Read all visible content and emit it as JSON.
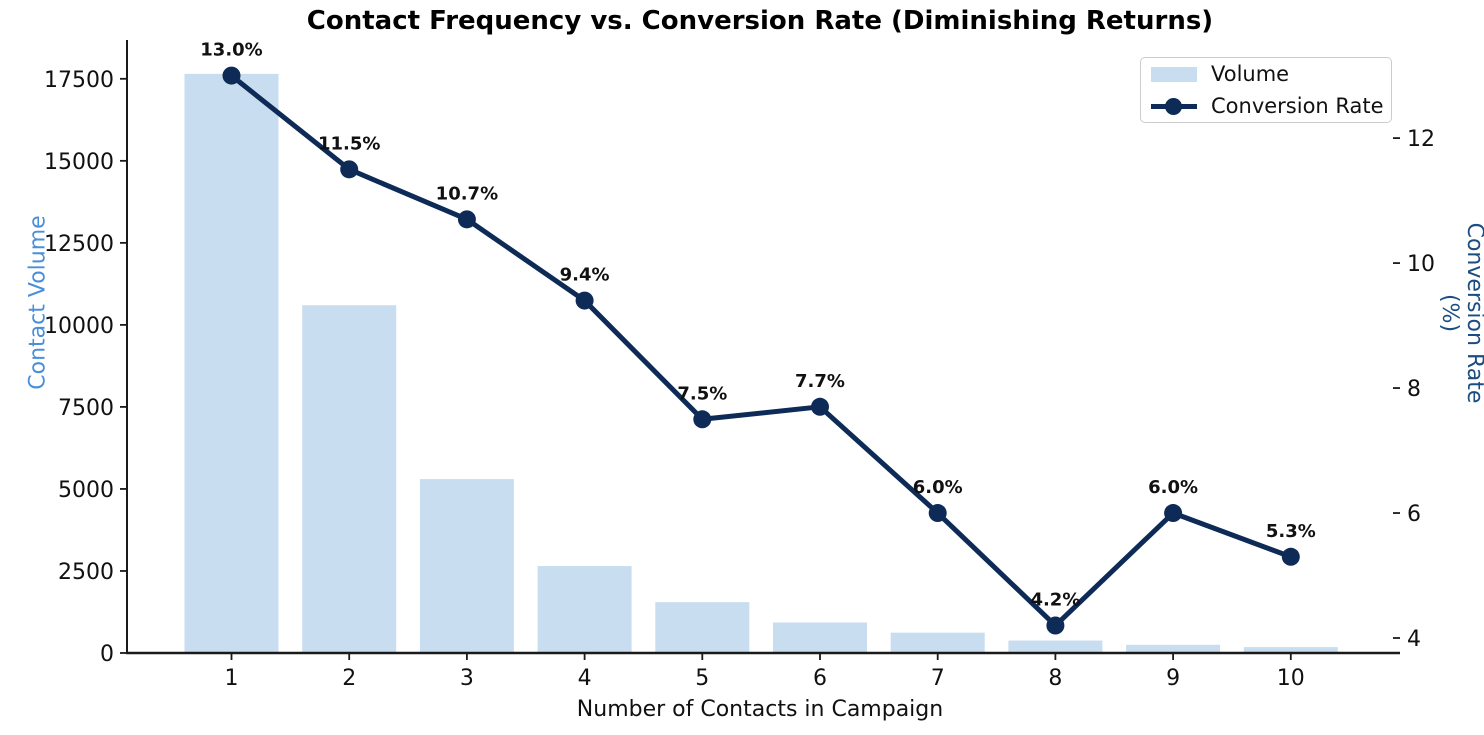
{
  "title": "Contact Frequency vs. Conversion Rate (Diminishing Returns)",
  "legend": {
    "volume_label": "Volume",
    "conversion_label": "Conversion Rate",
    "position": "upper right"
  },
  "colors": {
    "bar_fill": "#c9ddf0",
    "line": "#0d2b56",
    "left_axis_label": "#4a90d9",
    "right_axis_label": "#1b4d82",
    "tick_text": "#111111",
    "spine": "#1a1a1a",
    "point_label_text": "#111111"
  },
  "chart_data": {
    "type": "combo",
    "title": "Contact Frequency vs. Conversion Rate (Diminishing Returns)",
    "xlabel": "Number of Contacts in Campaign",
    "ylabel_left": "Contact Volume",
    "ylabel_right": "Conversion Rate (%)",
    "categories": [
      1,
      2,
      3,
      4,
      5,
      6,
      7,
      8,
      9,
      10
    ],
    "series": [
      {
        "name": "Volume",
        "type": "bar",
        "axis": "left",
        "values": [
          17650,
          10600,
          5300,
          2650,
          1550,
          930,
          620,
          380,
          250,
          180
        ]
      },
      {
        "name": "Conversion Rate",
        "type": "line",
        "axis": "right",
        "values": [
          13.0,
          11.5,
          10.7,
          9.4,
          7.5,
          7.7,
          6.0,
          4.2,
          6.0,
          5.3
        ],
        "point_labels": [
          "13.0%",
          "11.5%",
          "10.7%",
          "9.4%",
          "7.5%",
          "7.7%",
          "6.0%",
          "4.2%",
          "6.0%",
          "5.3%"
        ]
      }
    ],
    "yticks_left": [
      0,
      2500,
      5000,
      7500,
      10000,
      12500,
      15000,
      17500
    ],
    "yticks_right": [
      4,
      6,
      8,
      10,
      12
    ],
    "ylim_left": [
      0,
      18530
    ],
    "ylim_right": [
      3.76,
      13.49
    ],
    "grid": false,
    "legend_position": "upper right"
  }
}
